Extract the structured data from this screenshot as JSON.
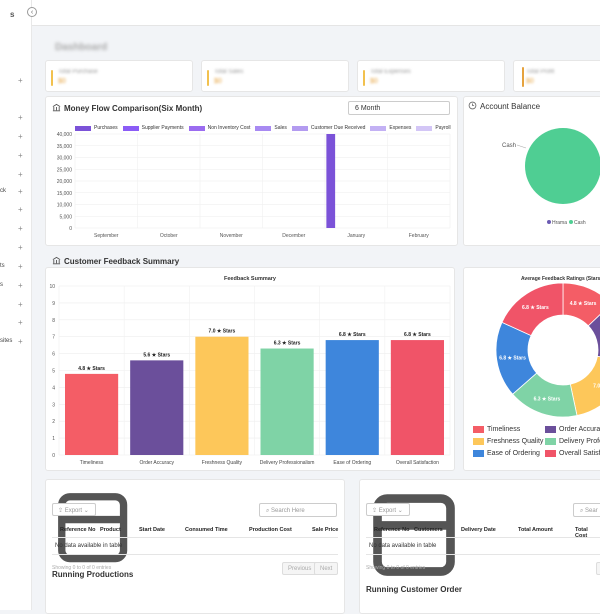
{
  "sidebar": {
    "title": "s",
    "items": [
      "ck",
      "ts",
      "s",
      "sites"
    ]
  },
  "topbar": {
    "collapse_label": "‹"
  },
  "page": {
    "heading": "Dashboard"
  },
  "stats": [
    {
      "title": "Total Purchase",
      "value": "$0",
      "color": "#f2c14e"
    },
    {
      "title": "Total Sales",
      "value": "$0",
      "color": "#f2c14e"
    },
    {
      "title": "Total Expenses",
      "value": "$0",
      "color": "#f2c14e"
    },
    {
      "title": "Total Profit",
      "value": "$0",
      "color": "#e6a23c"
    }
  ],
  "money_flow": {
    "title": "Money Flow Comparison(Six Month)",
    "period": "6 Month",
    "chart_data": {
      "type": "bar",
      "categories": [
        "September",
        "October",
        "November",
        "December",
        "January",
        "February"
      ],
      "series": [
        {
          "name": "Purchases",
          "color": "#7b52d8",
          "values": [
            0,
            0,
            0,
            0,
            40000,
            0
          ]
        },
        {
          "name": "Supplier Payments",
          "color": "#8b5cf6",
          "values": [
            0,
            0,
            0,
            0,
            0,
            0
          ]
        },
        {
          "name": "Non Inventory Cost",
          "color": "#9b6cf0",
          "values": [
            0,
            0,
            0,
            0,
            0,
            0
          ]
        },
        {
          "name": "Sales",
          "color": "#a88af2",
          "values": [
            0,
            0,
            0,
            0,
            0,
            0
          ]
        },
        {
          "name": "Customer Due Received",
          "color": "#b39bf0",
          "values": [
            0,
            0,
            0,
            0,
            0,
            0
          ]
        },
        {
          "name": "Expenses",
          "color": "#c3b1f4",
          "values": [
            0,
            0,
            0,
            0,
            0,
            0
          ]
        },
        {
          "name": "Payroll",
          "color": "#d3c6f6",
          "values": [
            0,
            0,
            0,
            0,
            0,
            0
          ]
        }
      ],
      "yticks": [
        "40,000",
        "35,000",
        "30,000",
        "25,000",
        "20,000",
        "15,000",
        "10,000",
        "5,000",
        "0"
      ],
      "ylim": [
        0,
        40000
      ]
    }
  },
  "account_balance": {
    "title": "Account Balance",
    "chart_data": {
      "type": "pie",
      "labels": [
        "Cash"
      ],
      "legend": [
        "Hrama",
        "Cash"
      ],
      "values": [
        100
      ],
      "colors": [
        "#4fce93"
      ],
      "legend_colors": [
        "#6b5bb3",
        "#4fce93"
      ]
    }
  },
  "feedback": {
    "section_title": "Customer Feedback Summary",
    "chart_data": {
      "type": "bar",
      "title": "Feedback Summary",
      "categories": [
        "Timeliness",
        "Order Accuracy",
        "Freshness Quality",
        "Delivery Professionalism",
        "Ease of Ordering",
        "Overall Satisfaction"
      ],
      "values": [
        4.8,
        5.6,
        7.0,
        6.3,
        6.8,
        6.8
      ],
      "labels": [
        "4.8 ★ Stars",
        "5.6 ★ Stars",
        "7.0 ★ Stars",
        "6.3 ★ Stars",
        "6.8 ★ Stars",
        "6.8 ★ Stars"
      ],
      "colors": [
        "#f45d66",
        "#6b4f9b",
        "#fdc75a",
        "#7fd3a6",
        "#3e86dc",
        "#f05468"
      ],
      "yticks": [
        "10",
        "9",
        "8",
        "7",
        "6",
        "5",
        "4",
        "3",
        "2",
        "1",
        "0"
      ],
      "ylim": [
        0,
        10
      ]
    }
  },
  "ratings": {
    "chart_data": {
      "type": "pie",
      "title": "Average Feedback Ratings (Stars)",
      "labels": [
        "Timeliness",
        "Order Accuracy",
        "Freshness Quality",
        "Delivery Professionalism",
        "Ease of Ordering",
        "Overall Satisfaction"
      ],
      "legend_text": [
        "Timeliness",
        "Order Accuracy",
        "Freshness Quality",
        "Delivery Profe",
        "Ease of Ordering",
        "Overall Satisfac"
      ],
      "slice_labels": [
        "4.8 ★ Stars",
        "6.",
        "7.0 ★",
        "6.3 ★ Stars",
        "6.8 ★ Stars",
        "6.8 ★ Stars"
      ],
      "values": [
        4.8,
        5.6,
        7.0,
        6.3,
        6.8,
        6.8
      ],
      "colors": [
        "#f45d66",
        "#6b4f9b",
        "#fdc75a",
        "#7fd3a6",
        "#3e86dc",
        "#f05468"
      ]
    }
  },
  "productions": {
    "title": "Running Productions",
    "export": "Export",
    "search_placeholder": "Search Here",
    "columns": [
      "Reference No",
      "Product",
      "Start Date",
      "Consumed Time",
      "Production Cost",
      "Sale Price"
    ],
    "empty": "No data available in table",
    "showing": "Showing 0 to 0 of 0 entries",
    "prev": "Previous",
    "next": "Next"
  },
  "customer_order": {
    "title": "Running Customer Order",
    "export": "Export",
    "search_placeholder": "Sear",
    "columns": [
      "Reference No",
      "Customers",
      "Delivery Date",
      "Total Amount",
      "Total Cost"
    ],
    "empty": "No data available in table",
    "showing": "Showing 0 to 0 of 0 entries",
    "prev": "P"
  }
}
